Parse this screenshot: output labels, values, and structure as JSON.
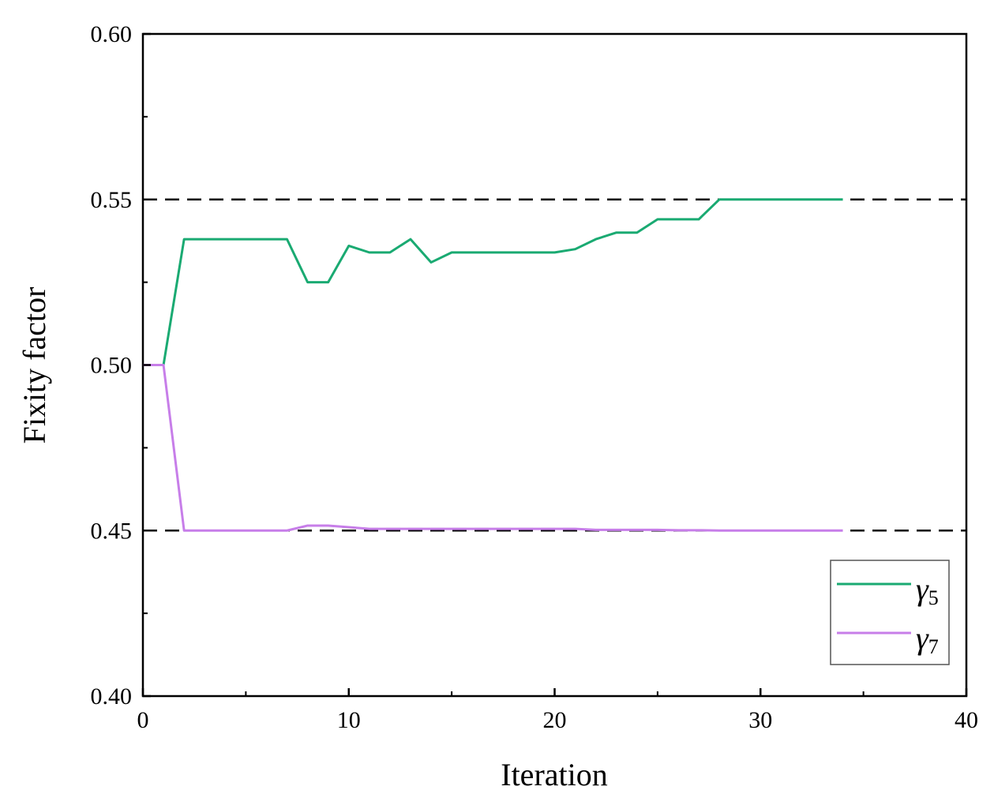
{
  "chart_data": {
    "type": "line",
    "title": "",
    "xlabel": "Iteration",
    "ylabel": "Fixity factor",
    "xlim": [
      0,
      40
    ],
    "ylim": [
      0.4,
      0.6
    ],
    "x_ticks": [
      0,
      10,
      20,
      30,
      40
    ],
    "x_tick_labels": [
      "0",
      "10",
      "20",
      "30",
      "40"
    ],
    "y_ticks": [
      0.4,
      0.45,
      0.5,
      0.55,
      0.6
    ],
    "y_tick_labels": [
      "0.40",
      "0.45",
      "0.50",
      "0.55",
      "0.60"
    ],
    "x_minor_step": 5,
    "y_minor_step": 0.025,
    "grid": false,
    "legend_position": "bottom-right",
    "reference_lines": [
      {
        "y": 0.55,
        "x_end": 40,
        "style": "dashed",
        "color": "#000000"
      },
      {
        "y": 0.45,
        "x_end": 40,
        "style": "dashed",
        "color": "#000000"
      }
    ],
    "x": [
      0,
      1,
      2,
      3,
      4,
      5,
      6,
      7,
      8,
      9,
      10,
      11,
      12,
      13,
      14,
      15,
      16,
      17,
      18,
      19,
      20,
      21,
      22,
      23,
      24,
      25,
      26,
      27,
      28,
      29,
      30,
      31,
      32,
      33,
      34
    ],
    "series": [
      {
        "name": "γ5",
        "label_main": "γ",
        "label_sub": "5",
        "color": "#1aaa72",
        "values": [
          0.5,
          0.5,
          0.538,
          0.538,
          0.538,
          0.538,
          0.538,
          0.538,
          0.525,
          0.525,
          0.536,
          0.534,
          0.534,
          0.538,
          0.531,
          0.534,
          0.534,
          0.534,
          0.534,
          0.534,
          0.534,
          0.535,
          0.538,
          0.54,
          0.54,
          0.544,
          0.544,
          0.544,
          0.55,
          0.55,
          0.55,
          0.55,
          0.55,
          0.55,
          0.55
        ]
      },
      {
        "name": "γ7",
        "label_main": "γ",
        "label_sub": "7",
        "color": "#c77ee9",
        "values": [
          0.5,
          0.5,
          0.45,
          0.45,
          0.45,
          0.45,
          0.45,
          0.45,
          0.4515,
          0.4515,
          0.451,
          0.4505,
          0.4505,
          0.4505,
          0.4505,
          0.4505,
          0.4505,
          0.4505,
          0.4505,
          0.4505,
          0.4505,
          0.4505,
          0.4502,
          0.4502,
          0.4502,
          0.4502,
          0.4501,
          0.4501,
          0.45,
          0.45,
          0.45,
          0.45,
          0.45,
          0.45,
          0.45
        ]
      }
    ]
  }
}
